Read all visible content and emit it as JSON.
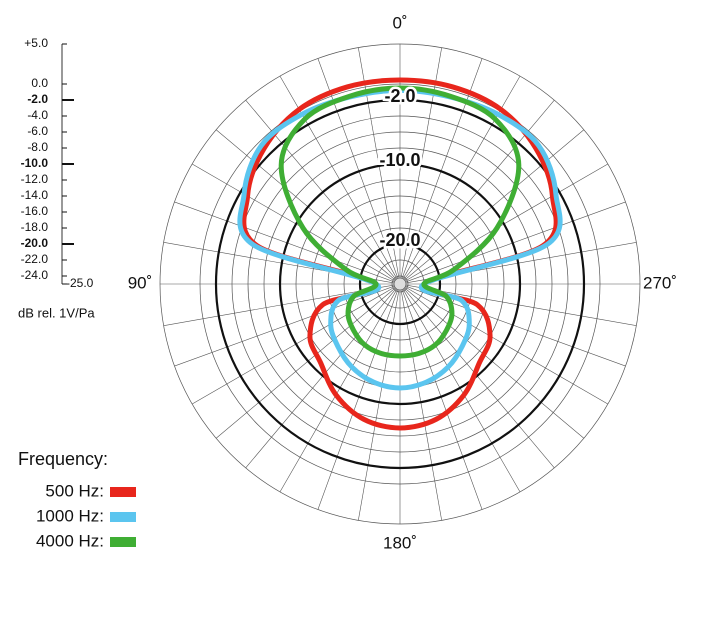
{
  "chart_data": {
    "type": "polar",
    "unit_label": "dB rel. 1V/Pa",
    "legend_title": "Frequency:",
    "rlim": [
      -25,
      5
    ],
    "rticks": [
      {
        "value": 5,
        "label": "+5.0"
      },
      {
        "value": 0,
        "label": "0.0"
      },
      {
        "value": -2,
        "label": "-2.0"
      },
      {
        "value": -4,
        "label": "-4.0"
      },
      {
        "value": -6,
        "label": "-6.0"
      },
      {
        "value": -8,
        "label": "-8.0"
      },
      {
        "value": -10,
        "label": "-10.0"
      },
      {
        "value": -12,
        "label": "-12.0"
      },
      {
        "value": -14,
        "label": "-14.0"
      },
      {
        "value": -16,
        "label": "-16.0"
      },
      {
        "value": -18,
        "label": "-18.0"
      },
      {
        "value": -20,
        "label": "-20.0"
      },
      {
        "value": -22,
        "label": "-22.0"
      },
      {
        "value": -24,
        "label": "-24.0"
      },
      {
        "value": -25,
        "label": "-25.0"
      }
    ],
    "major_rticks": [
      -2,
      -10,
      -20
    ],
    "ring_labels": [
      {
        "value": -2,
        "label": "-2.0"
      },
      {
        "value": -10,
        "label": "-10.0"
      },
      {
        "value": -20,
        "label": "-20.0"
      }
    ],
    "angle_ticks": [
      {
        "value": 0,
        "label": "0˚"
      },
      {
        "value": 90,
        "label": "90˚"
      },
      {
        "value": 180,
        "label": "180˚"
      },
      {
        "value": 270,
        "label": "270˚"
      }
    ],
    "spoke_step": 10,
    "angles": [
      0,
      15,
      30,
      45,
      60,
      75,
      90,
      105,
      120,
      135,
      150,
      165,
      180,
      195,
      210,
      225,
      240,
      255,
      270,
      285,
      300,
      315,
      330,
      345
    ],
    "series": [
      {
        "name": "500 Hz:",
        "color": "#e8261c",
        "values": [
          0.5,
          0.5,
          0.2,
          -1.0,
          -3.0,
          -6.5,
          -22,
          -15,
          -12,
          -11,
          -9,
          -7.5,
          -7,
          -7.5,
          -9,
          -11,
          -12,
          -15,
          -22,
          -6.5,
          -3.0,
          -1.0,
          0.2,
          0.5
        ]
      },
      {
        "name": "1000 Hz:",
        "color": "#5bc5ef",
        "values": [
          -0.8,
          -0.8,
          -0.5,
          -0.5,
          -2.5,
          -6,
          -22,
          -17,
          -15,
          -14,
          -13,
          -12.3,
          -12,
          -12.3,
          -13,
          -14,
          -15,
          -17,
          -22,
          -6,
          -2.5,
          -0.5,
          -0.5,
          -0.8
        ]
      },
      {
        "name": "4000 Hz:",
        "color": "#3fae34",
        "values": [
          -0.5,
          -0.7,
          -1.2,
          -4,
          -11,
          -18,
          -22,
          -19,
          -17.5,
          -16.8,
          -16.2,
          -16,
          -16,
          -16,
          -16.2,
          -16.8,
          -17.5,
          -19,
          -22,
          -18,
          -11,
          -4,
          -1.2,
          -0.7
        ]
      }
    ]
  }
}
